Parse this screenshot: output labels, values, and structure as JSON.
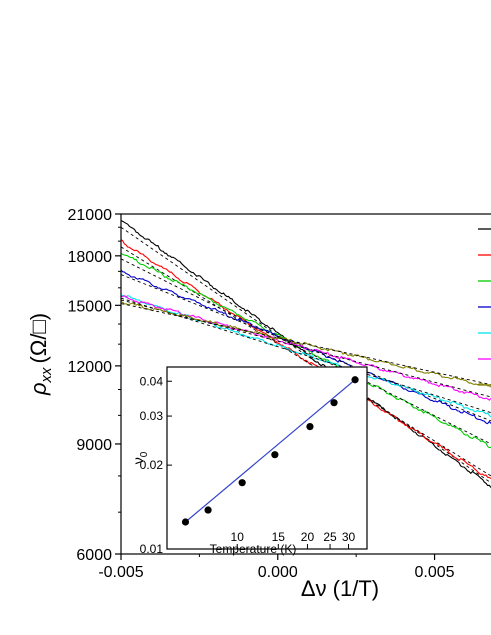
{
  "chart_data": [
    {
      "type": "line",
      "title": "",
      "xlabel": "Δν (1/T)",
      "ylabel": "ρ_xx (Ω/□)",
      "ylabel_parts": {
        "symbol": "ρ",
        "sub": "xx",
        "unit": "(Ω/□)"
      },
      "y_scale": "log",
      "xlim": [
        -0.005,
        0.0068
      ],
      "ylim": [
        6000,
        21000
      ],
      "x_ticks": [
        {
          "value": -0.005,
          "label": "-0.005"
        },
        {
          "value": 0.0,
          "label": "0.000"
        },
        {
          "value": 0.005,
          "label": "0.005"
        }
      ],
      "y_ticks": [
        {
          "value": 6000,
          "label": "6000"
        },
        {
          "value": 9000,
          "label": "9000"
        },
        {
          "value": 12000,
          "label": "12000"
        },
        {
          "value": 15000,
          "label": "15000"
        },
        {
          "value": 18000,
          "label": "18000"
        },
        {
          "value": 21000,
          "label": "21000"
        }
      ],
      "grid": false,
      "legend_position": "right (cut off)",
      "fit_lines": "dashed black",
      "series": [
        {
          "color": "#000000",
          "x": [
            -0.005,
            0.0068
          ],
          "y": [
            20500,
            7700
          ],
          "fit_y": [
            20000,
            7800
          ]
        },
        {
          "color": "#ff0000",
          "x": [
            -0.005,
            0.0068
          ],
          "y": [
            19000,
            7900
          ],
          "fit_y": [
            18600,
            8000
          ]
        },
        {
          "color": "#00cc00",
          "x": [
            -0.005,
            0.0068
          ],
          "y": [
            18200,
            8900
          ],
          "fit_y": [
            17800,
            9000
          ]
        },
        {
          "color": "#0000cc",
          "x": [
            -0.005,
            0.0068
          ],
          "y": [
            17000,
            9700
          ],
          "fit_y": [
            16800,
            9800
          ]
        },
        {
          "color": "#00e5ee",
          "x": [
            -0.005,
            0.0068
          ],
          "y": [
            15600,
            10000
          ],
          "fit_y": [
            15400,
            10100
          ]
        },
        {
          "color": "#ff00ff",
          "x": [
            -0.005,
            0.0068
          ],
          "y": [
            15500,
            10600
          ],
          "fit_y": [
            15300,
            10700
          ]
        },
        {
          "color": "#808000",
          "x": [
            -0.005,
            0.0068
          ],
          "y": [
            15200,
            11100
          ],
          "fit_y": [
            15100,
            11200
          ]
        }
      ]
    },
    {
      "type": "scatter",
      "title": "",
      "xlabel": "Temperature (K)",
      "ylabel": "ν",
      "ylabel_sub": "0",
      "x_scale": "log",
      "y_scale": "log",
      "xlim": [
        5,
        36
      ],
      "ylim": [
        0.01,
        0.045
      ],
      "x_ticks": [
        {
          "value": 10,
          "label": "10"
        },
        {
          "value": 15,
          "label": "15"
        },
        {
          "value": 20,
          "label": "20"
        },
        {
          "value": 25,
          "label": "25"
        },
        {
          "value": 30,
          "label": "30"
        }
      ],
      "y_ticks": [
        {
          "value": 0.01,
          "label": "0.01"
        },
        {
          "value": 0.02,
          "label": "0.02"
        },
        {
          "value": 0.03,
          "label": "0.03"
        },
        {
          "value": 0.04,
          "label": "0.04"
        }
      ],
      "fit_line_color": "#3344cc",
      "points": {
        "x": [
          6,
          7.5,
          10.5,
          14.5,
          20.5,
          26,
          32
        ],
        "y": [
          0.0125,
          0.0138,
          0.0173,
          0.0218,
          0.0275,
          0.0335,
          0.0405
        ]
      }
    }
  ]
}
